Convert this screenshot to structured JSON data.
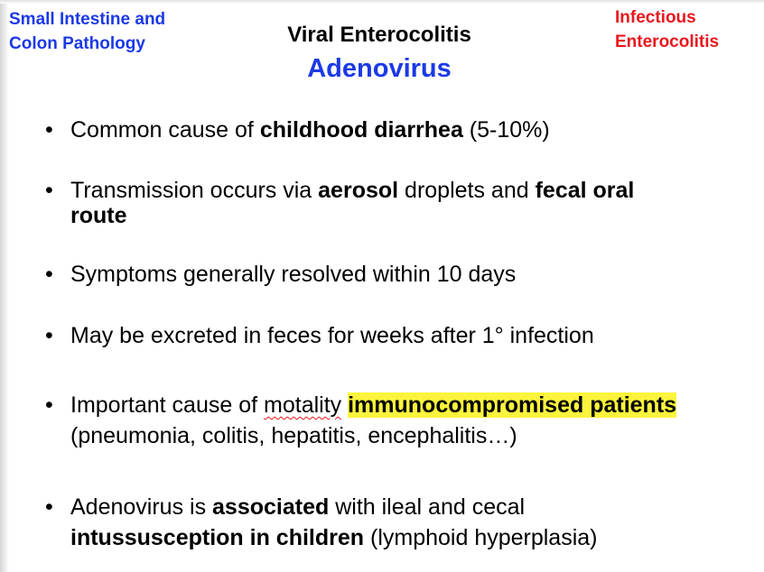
{
  "header": {
    "left_line1": "Small Intestine and",
    "left_line2": "Colon Pathology",
    "right_line1": "Infectious",
    "right_line2": "Enterocolitis",
    "title": "Viral Enterocolitis",
    "subtitle": "Adenovirus"
  },
  "bullets": [
    {
      "bullet": "•",
      "parts": [
        "Common cause of ",
        "childhood diarrhea",
        " (5-10%)"
      ]
    },
    {
      "bullet": "•",
      "parts": [
        "Transmission occurs via ",
        "aerosol",
        " droplets and ",
        "fecal oral",
        "route"
      ]
    },
    {
      "bullet": "•",
      "parts": [
        "Symptoms generally resolved within 10 days"
      ]
    },
    {
      "bullet": "•",
      "parts": [
        "May be excreted in feces for weeks after 1° infection"
      ]
    },
    {
      "bullet": "•",
      "parts": [
        "Important cause of ",
        "motality",
        " ",
        "immunocompromised patients",
        "(pneumonia, colitis, hepatitis, encephalitis…)"
      ]
    },
    {
      "bullet": "•",
      "parts": [
        "Adenovirus is ",
        "associated",
        " with ileal and cecal",
        "intussusception in children",
        " (lymphoid hyperplasia)"
      ]
    }
  ],
  "colors": {
    "blue_heading": "#1c39e6",
    "red_heading": "#e8181e",
    "highlight": "#fbf43c"
  }
}
